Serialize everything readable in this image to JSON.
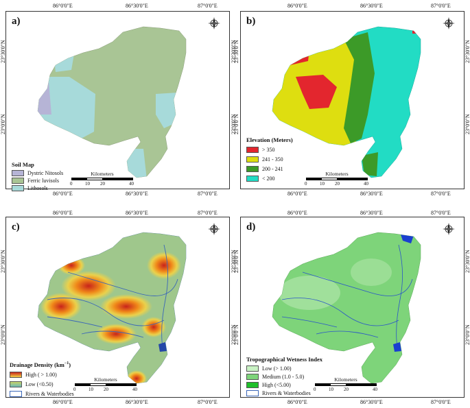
{
  "coords": {
    "lon": [
      "86°0'0\"E",
      "86°30'0\"E",
      "87°0'0\"E"
    ],
    "lat": [
      "23°30'0\"N",
      "23°0'0\"N"
    ]
  },
  "scalebar": {
    "title": "Kilometers",
    "ticks": [
      "0",
      "10",
      "20",
      "40"
    ]
  },
  "compass": {
    "n": "N",
    "s": "S",
    "e": "E",
    "w": "W"
  },
  "panels": {
    "a": {
      "label": "a)",
      "legend_title": "Soil Map",
      "items": [
        {
          "label": "Dystric Nitosols",
          "color": "#b6b4d6"
        },
        {
          "label": "Ferric luvisols",
          "color": "#a9c595"
        },
        {
          "label": "Lithosols",
          "color": "#a7dada"
        }
      ]
    },
    "b": {
      "label": "b)",
      "legend_title": "Elevation  (Meters)",
      "items": [
        {
          "label": "> 350",
          "color": "#e3262e"
        },
        {
          "label": "241 - 350",
          "color": "#dede10"
        },
        {
          "label": "200 - 241",
          "color": "#3c9a28"
        },
        {
          "label": "< 200",
          "color": "#22dcc4"
        }
      ]
    },
    "c": {
      "label": "c)",
      "legend_title_main": "Drainage Density (km",
      "legend_title_sup": "−1",
      "legend_title_end": ")",
      "items": [
        {
          "label": "High ( > 1.00)",
          "color": "#e0421c"
        },
        {
          "label": "Low (<0.50)",
          "color": "#6db9b7"
        },
        {
          "label": "Rivers & Waterbodies",
          "color": "#3a66b8"
        }
      ]
    },
    "d": {
      "label": "d)",
      "legend_title": "Tropographical Wetness Index",
      "items": [
        {
          "label": "Low (> 1.00)",
          "color": "#c9f2c4"
        },
        {
          "label": "Medium (1.0 - 5.0)",
          "color": "#7ed47a"
        },
        {
          "label": "High (<5.00)",
          "color": "#1fbf2a"
        },
        {
          "label": "Rivers & Waterbodies",
          "color": "#3a66b8"
        }
      ]
    }
  }
}
